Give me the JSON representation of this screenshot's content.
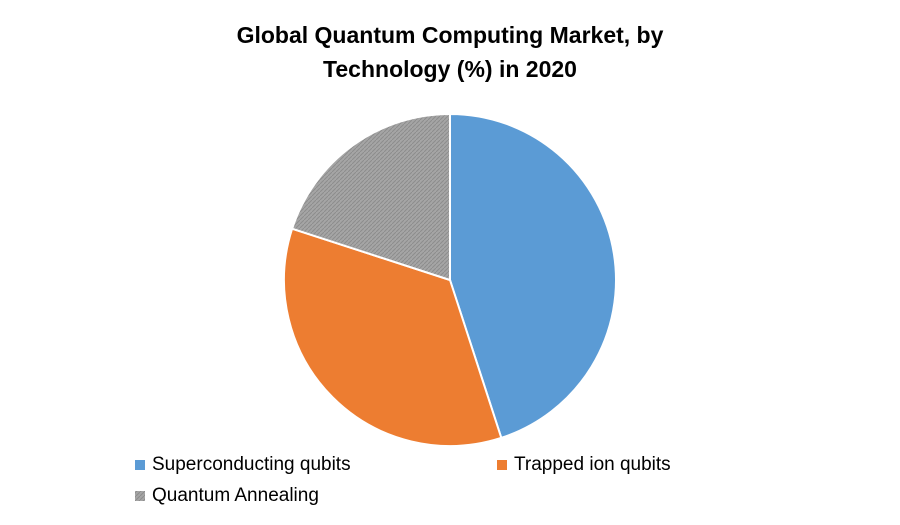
{
  "chart_data": {
    "type": "pie",
    "title": "Global Quantum Computing Market, by Technology (%) in 2020",
    "categories": [
      "Superconducting qubits",
      "Trapped ion qubits",
      "Quantum Annealing"
    ],
    "values": [
      45,
      35,
      20
    ],
    "colors": [
      "#5b9bd5",
      "#ed7d31",
      "#a5a5a5"
    ]
  }
}
